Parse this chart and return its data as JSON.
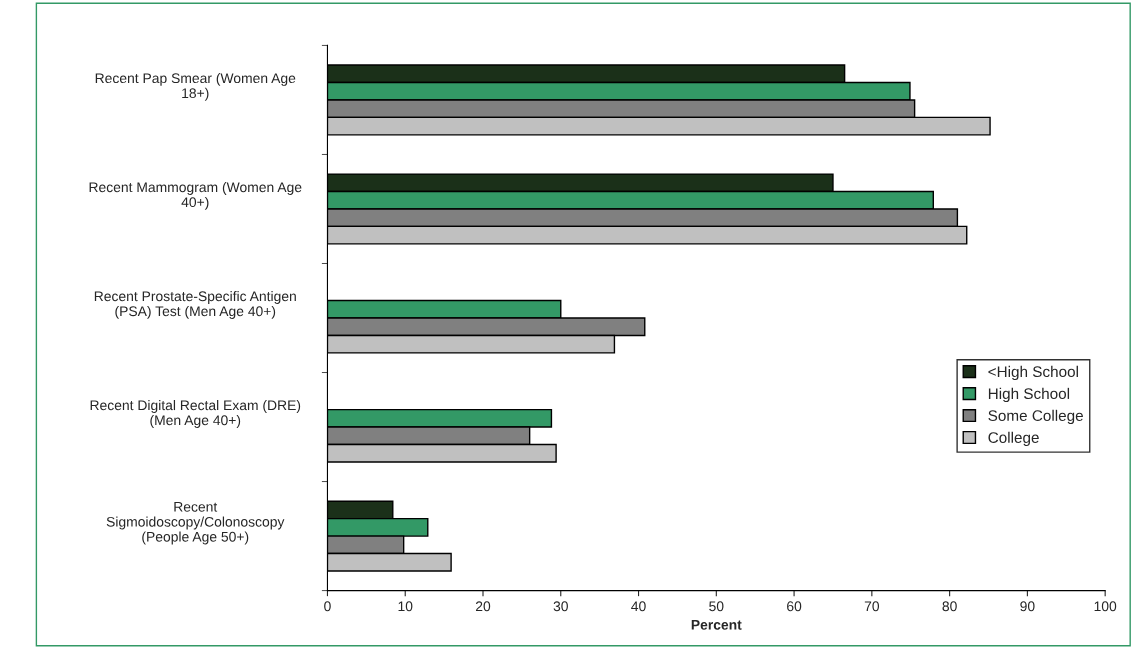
{
  "chart_data": {
    "type": "bar",
    "orientation": "horizontal",
    "xlabel": "Percent",
    "categories": [
      "Recent Pap Smear (Women Age 18+)",
      "Recent Mammogram (Women Age 40+)",
      "Recent Prostate-Specific Antigen (PSA) Test (Men Age 40+)",
      "Recent Digital Rectal Exam (DRE) (Men Age 40+)",
      "Recent Sigmoidoscopy/Colonoscopy (People Age 50+)"
    ],
    "series": [
      {
        "name": "<High School",
        "color": "#1b3019",
        "values": [
          66.5,
          65.0,
          null,
          null,
          8.4
        ]
      },
      {
        "name": "High School",
        "color": "#339966",
        "values": [
          74.9,
          77.9,
          30.0,
          28.8,
          12.9
        ]
      },
      {
        "name": "Some College",
        "color": "#808080",
        "values": [
          75.5,
          81.0,
          40.8,
          26.0,
          9.8
        ]
      },
      {
        "name": "College",
        "color": "#c0c0c0",
        "values": [
          85.2,
          82.2,
          36.9,
          29.4,
          15.9
        ]
      }
    ],
    "xlim": [
      0,
      100
    ],
    "xticks": [
      0,
      10,
      20,
      30,
      40,
      50,
      60,
      70,
      80,
      90,
      100
    ],
    "grid": false,
    "legend": "bottom right"
  }
}
